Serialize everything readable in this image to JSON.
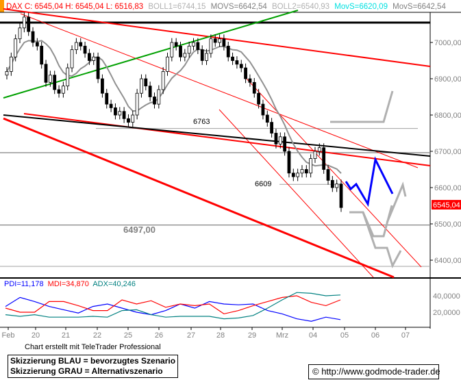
{
  "header": {
    "dax": "DAX C: 6545,04 H: 6545,04 L: 6516,83",
    "boll1": "BOLL1=6744,15",
    "movs1": "MOVS=6642,54",
    "boll2": "BOLL2=6540,93",
    "movs_cyan": "MovS=6620,09",
    "movs2": "MovS=6642,54"
  },
  "indicator_header": {
    "pdi": "PDI=11,178",
    "mdi": "MDI=34,870",
    "adx": "ADX=40,246"
  },
  "footer": {
    "credit": "Chart erstellt mit TeleTrader Professional",
    "legend_blue": "Skizzierung BLAU = bevorzugtes Szenario",
    "legend_gray": "Skizzierung GRAU = Alternativszenario",
    "copyright": "© http://www.godmode-trader.de"
  },
  "colors": {
    "up": "#000000",
    "red": "#ff0000",
    "green": "#00a000",
    "blue": "#0000ff",
    "gray": "#a0a0a0",
    "teal": "#008080",
    "cyan": "#00e0e0"
  },
  "chart_data": {
    "type": "candlestick",
    "instrument": "DAX",
    "x_ticks": [
      "Feb",
      "20",
      "21",
      "22",
      "25",
      "26",
      "27",
      "28",
      "29",
      "Mrz",
      "04",
      "05",
      "06",
      "07"
    ],
    "y_ticks": [
      "7000,00",
      "6900,00",
      "6800,00",
      "6700,00",
      "6600,00",
      "6500,00",
      "6400,00"
    ],
    "ylim": [
      6350,
      7120
    ],
    "last_price_label": "6545,04",
    "level_labels": [
      {
        "text": "6763",
        "value": 6763
      },
      {
        "text": "6609",
        "value": 6609
      },
      {
        "text": "6497,00",
        "value": 6497
      }
    ],
    "closes": [
      6920,
      6960,
      7010,
      7040,
      7070,
      7030,
      7000,
      6990,
      6940,
      6890,
      6910,
      6870,
      6860,
      6880,
      6930,
      6980,
      7000,
      6990,
      6970,
      6950,
      6960,
      6900,
      6860,
      6830,
      6820,
      6800,
      6810,
      6790,
      6780,
      6800,
      6860,
      6900,
      6880,
      6850,
      6830,
      6870,
      6920,
      6960,
      7000,
      6990,
      6960,
      6970,
      6990,
      7000,
      6980,
      6950,
      6970,
      7010,
      7000,
      7010,
      6990,
      6960,
      6950,
      6940,
      6930,
      6900,
      6890,
      6860,
      6830,
      6800,
      6780,
      6750,
      6720,
      6740,
      6700,
      6640,
      6630,
      6640,
      6650,
      6640,
      6680,
      6700,
      6710,
      6650,
      6620,
      6600,
      6610,
      6545
    ],
    "indicator": {
      "y_ticks": [
        "40,0000",
        "20,0000"
      ],
      "series": [
        {
          "name": "PDI",
          "color": "#0000ff",
          "values": [
            27,
            38,
            33,
            27,
            23,
            19,
            27,
            30,
            25,
            20,
            17,
            22,
            30,
            25,
            33,
            30,
            29,
            30,
            22,
            18,
            12,
            9,
            14,
            11
          ]
        },
        {
          "name": "MDI",
          "color": "#ff0000",
          "values": [
            25,
            20,
            20,
            33,
            33,
            28,
            22,
            22,
            35,
            30,
            34,
            26,
            30,
            28,
            30,
            18,
            22,
            28,
            33,
            38,
            40,
            32,
            28,
            35
          ]
        },
        {
          "name": "ADX",
          "color": "#008080",
          "values": [
            17,
            15,
            17,
            14,
            14,
            14,
            15,
            14,
            22,
            23,
            17,
            14,
            15,
            15,
            15,
            12,
            13,
            16,
            25,
            35,
            44,
            43,
            40,
            41
          ]
        }
      ]
    }
  }
}
